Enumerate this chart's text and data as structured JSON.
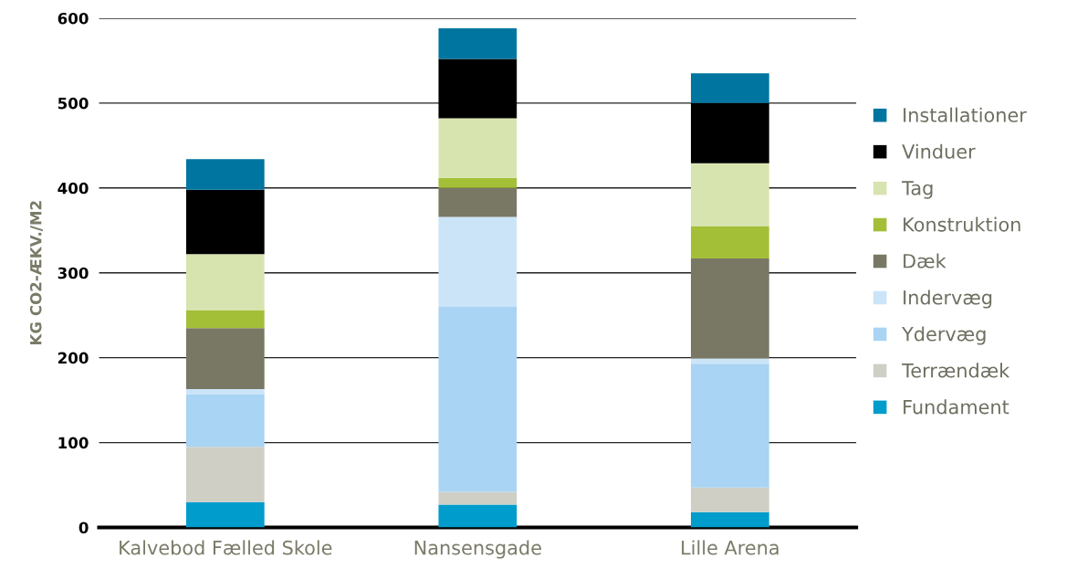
{
  "chart_data": {
    "type": "bar",
    "stacked": true,
    "ylabel": "KG CO2-ÆKV./M2",
    "categories": [
      "Kalvebod Fælled Skole",
      "Nansensgade",
      "Lille Arena"
    ],
    "series": [
      {
        "name": "Fundament",
        "color": "#009ccc",
        "values": [
          30,
          27,
          18
        ]
      },
      {
        "name": "Terrændæk",
        "color": "#cfcfc6",
        "values": [
          65,
          15,
          29
        ]
      },
      {
        "name": "Ydervæg",
        "color": "#a9d4f3",
        "values": [
          62,
          218,
          146
        ]
      },
      {
        "name": "Indervæg",
        "color": "#cbe4f8",
        "values": [
          6,
          106,
          6
        ]
      },
      {
        "name": "Dæk",
        "color": "#797865",
        "values": [
          72,
          34,
          118
        ]
      },
      {
        "name": "Konstruktion",
        "color": "#a3bf38",
        "values": [
          21,
          12,
          38
        ]
      },
      {
        "name": "Tag",
        "color": "#d8e4b0",
        "values": [
          66,
          70,
          74
        ]
      },
      {
        "name": "Vinduer",
        "color": "#000000",
        "values": [
          76,
          70,
          71
        ]
      },
      {
        "name": "Installationer",
        "color": "#0075a0",
        "values": [
          36,
          36,
          35
        ]
      }
    ],
    "ylim": [
      0,
      600
    ],
    "yticks": [
      0,
      100,
      200,
      300,
      400,
      500,
      600
    ],
    "grid": "y",
    "legend": "right"
  }
}
